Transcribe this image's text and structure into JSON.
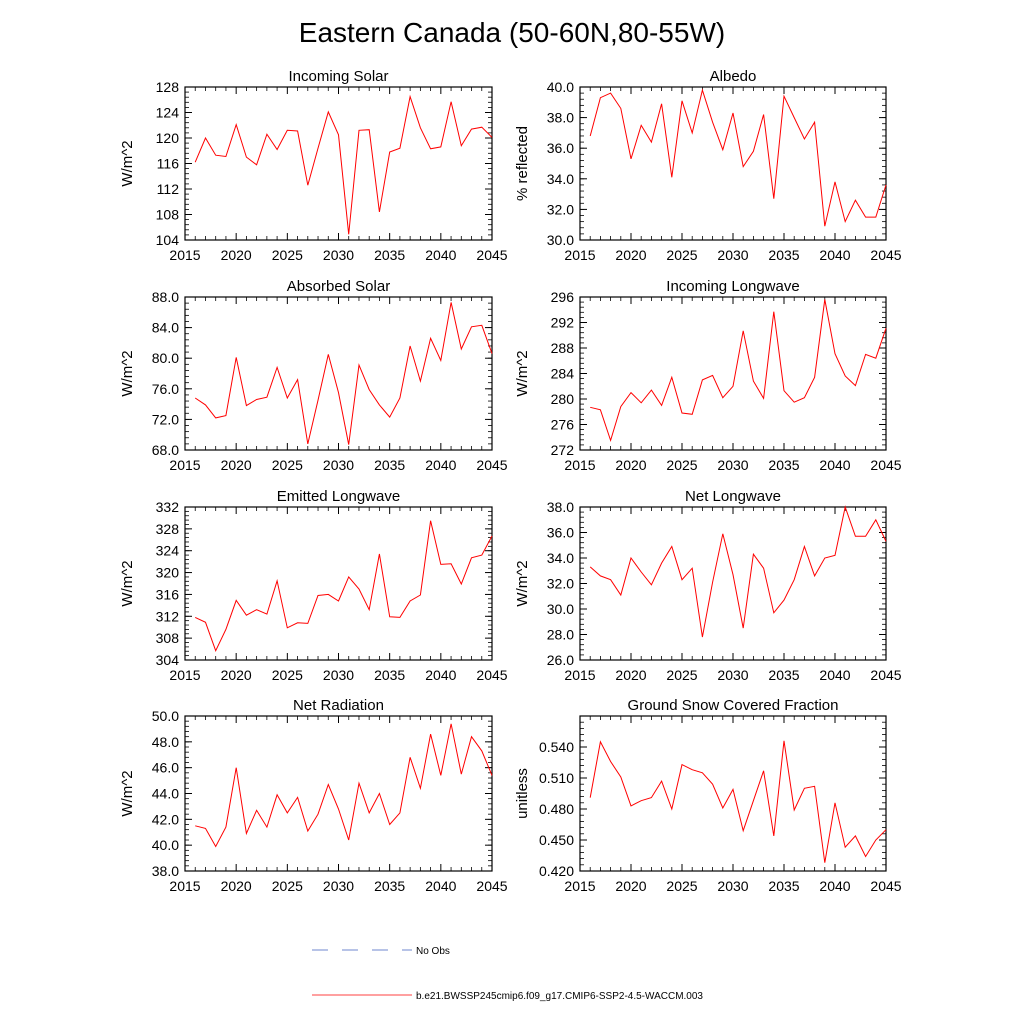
{
  "figure": {
    "title": "Eastern Canada (50-60N,80-55W)",
    "line_color": "#ff0000",
    "obs_color": "#4060c0"
  },
  "legend": {
    "items": [
      {
        "label": "No Obs",
        "style": "dashed",
        "color": "#4060c0"
      },
      {
        "label": "b.e21.BWSSP245cmip6.f09_g17.CMIP6-SSP2-4.5-WACCM.003",
        "style": "solid",
        "color": "#ff0000"
      }
    ]
  },
  "chart_data": [
    {
      "type": "line",
      "title": "Incoming Solar",
      "xlabel": "",
      "ylabel": "W/m^2",
      "xlim": [
        2015,
        2045
      ],
      "ylim": [
        104,
        128
      ],
      "yticks": [
        "104",
        "108",
        "112",
        "116",
        "120",
        "124",
        "128"
      ],
      "xticks": [
        "2015",
        "2020",
        "2025",
        "2030",
        "2035",
        "2040",
        "2045"
      ],
      "x": [
        2016,
        2017,
        2018,
        2019,
        2020,
        2021,
        2022,
        2023,
        2024,
        2025,
        2026,
        2027,
        2028,
        2029,
        2030,
        2031,
        2032,
        2033,
        2034,
        2035,
        2036,
        2037,
        2038,
        2039,
        2040,
        2041,
        2042,
        2043,
        2044,
        2045
      ],
      "series": [
        {
          "values": [
            116.2,
            120,
            117.3,
            117.1,
            122.1,
            117,
            115.8,
            120.6,
            118.2,
            121.2,
            121.1,
            112.6,
            118.4,
            124.1,
            120.5,
            104.9,
            121.2,
            121.3,
            108.4,
            117.8,
            118.4,
            126.5,
            121.6,
            118.3,
            118.6,
            125.7,
            118.8,
            121.4,
            121.7,
            120.1
          ]
        }
      ]
    },
    {
      "type": "line",
      "title": "Albedo",
      "xlabel": "",
      "ylabel": "% reflected",
      "xlim": [
        2015,
        2045
      ],
      "ylim": [
        30,
        40
      ],
      "yticks": [
        "30.0",
        "32.0",
        "34.0",
        "36.0",
        "38.0",
        "40.0"
      ],
      "xticks": [
        "2015",
        "2020",
        "2025",
        "2030",
        "2035",
        "2040",
        "2045"
      ],
      "x": [
        2016,
        2017,
        2018,
        2019,
        2020,
        2021,
        2022,
        2023,
        2024,
        2025,
        2026,
        2027,
        2028,
        2029,
        2030,
        2031,
        2032,
        2033,
        2034,
        2035,
        2036,
        2037,
        2038,
        2039,
        2040,
        2041,
        2042,
        2043,
        2044,
        2045
      ],
      "series": [
        {
          "values": [
            36.8,
            39.3,
            39.6,
            38.6,
            35.3,
            37.5,
            36.4,
            38.9,
            34.1,
            39.1,
            37,
            39.8,
            37.7,
            35.9,
            38.3,
            34.8,
            35.8,
            38.2,
            32.7,
            39.4,
            38,
            36.6,
            37.7,
            30.9,
            33.8,
            31.2,
            32.6,
            31.5,
            31.5,
            33.6
          ]
        }
      ]
    },
    {
      "type": "line",
      "title": "Absorbed Solar",
      "xlabel": "",
      "ylabel": "W/m^2",
      "xlim": [
        2015,
        2045
      ],
      "ylim": [
        68,
        88
      ],
      "yticks": [
        "68.0",
        "72.0",
        "76.0",
        "80.0",
        "84.0",
        "88.0"
      ],
      "xticks": [
        "2015",
        "2020",
        "2025",
        "2030",
        "2035",
        "2040",
        "2045"
      ],
      "x": [
        2016,
        2017,
        2018,
        2019,
        2020,
        2021,
        2022,
        2023,
        2024,
        2025,
        2026,
        2027,
        2028,
        2029,
        2030,
        2031,
        2032,
        2033,
        2034,
        2035,
        2036,
        2037,
        2038,
        2039,
        2040,
        2041,
        2042,
        2043,
        2044,
        2045
      ],
      "series": [
        {
          "values": [
            74.8,
            73.9,
            72.2,
            72.5,
            80.1,
            73.8,
            74.6,
            74.9,
            78.8,
            74.8,
            77.2,
            68.8,
            74.5,
            80.5,
            75.5,
            68.7,
            79.1,
            75.9,
            73.9,
            72.3,
            74.8,
            81.6,
            77,
            82.6,
            79.7,
            87.3,
            81.2,
            84.1,
            84.3,
            80.6
          ]
        }
      ]
    },
    {
      "type": "line",
      "title": "Incoming Longwave",
      "xlabel": "",
      "ylabel": "W/m^2",
      "xlim": [
        2015,
        2045
      ],
      "ylim": [
        272,
        296
      ],
      "yticks": [
        "272",
        "276",
        "280",
        "284",
        "288",
        "292",
        "296"
      ],
      "xticks": [
        "2015",
        "2020",
        "2025",
        "2030",
        "2035",
        "2040",
        "2045"
      ],
      "x": [
        2016,
        2017,
        2018,
        2019,
        2020,
        2021,
        2022,
        2023,
        2024,
        2025,
        2026,
        2027,
        2028,
        2029,
        2030,
        2031,
        2032,
        2033,
        2034,
        2035,
        2036,
        2037,
        2038,
        2039,
        2040,
        2041,
        2042,
        2043,
        2044,
        2045
      ],
      "series": [
        {
          "values": [
            278.7,
            278.3,
            273.5,
            278.8,
            281,
            279.4,
            281.4,
            279,
            283.4,
            277.8,
            277.6,
            283,
            283.7,
            280.2,
            282,
            290.7,
            282.8,
            280.1,
            293.7,
            281.3,
            279.5,
            280.2,
            283.4,
            295.6,
            287.1,
            283.6,
            282.1,
            287,
            286.4,
            291.1
          ]
        }
      ]
    },
    {
      "type": "line",
      "title": "Emitted Longwave",
      "xlabel": "",
      "ylabel": "W/m^2",
      "xlim": [
        2015,
        2045
      ],
      "ylim": [
        304,
        332
      ],
      "yticks": [
        "304",
        "308",
        "312",
        "316",
        "320",
        "324",
        "328",
        "332"
      ],
      "xticks": [
        "2015",
        "2020",
        "2025",
        "2030",
        "2035",
        "2040",
        "2045"
      ],
      "x": [
        2016,
        2017,
        2018,
        2019,
        2020,
        2021,
        2022,
        2023,
        2024,
        2025,
        2026,
        2027,
        2028,
        2029,
        2030,
        2031,
        2032,
        2033,
        2034,
        2035,
        2036,
        2037,
        2038,
        2039,
        2040,
        2041,
        2042,
        2043,
        2044,
        2045
      ],
      "series": [
        {
          "values": [
            311.8,
            310.9,
            305.7,
            309.6,
            314.9,
            312.2,
            313.2,
            312.4,
            318.5,
            309.9,
            310.8,
            310.7,
            315.8,
            316,
            314.8,
            319.2,
            317,
            313.2,
            323.4,
            311.9,
            311.8,
            314.8,
            315.9,
            329.5,
            321.5,
            321.6,
            317.9,
            322.7,
            323.2,
            326.7
          ]
        }
      ]
    },
    {
      "type": "line",
      "title": "Net Longwave",
      "xlabel": "",
      "ylabel": "W/m^2",
      "xlim": [
        2015,
        2045
      ],
      "ylim": [
        26,
        38
      ],
      "yticks": [
        "26.0",
        "28.0",
        "30.0",
        "32.0",
        "34.0",
        "36.0",
        "38.0"
      ],
      "xticks": [
        "2015",
        "2020",
        "2025",
        "2030",
        "2035",
        "2040",
        "2045"
      ],
      "x": [
        2016,
        2017,
        2018,
        2019,
        2020,
        2021,
        2022,
        2023,
        2024,
        2025,
        2026,
        2027,
        2028,
        2029,
        2030,
        2031,
        2032,
        2033,
        2034,
        2035,
        2036,
        2037,
        2038,
        2039,
        2040,
        2041,
        2042,
        2043,
        2044,
        2045
      ],
      "series": [
        {
          "values": [
            33.3,
            32.6,
            32.3,
            31.1,
            34,
            32.9,
            31.9,
            33.6,
            34.9,
            32.3,
            33.2,
            27.8,
            32.1,
            35.9,
            32.7,
            28.5,
            34.3,
            33.2,
            29.7,
            30.7,
            32.3,
            34.9,
            32.6,
            34,
            34.2,
            38,
            35.7,
            35.7,
            37,
            35.3
          ]
        }
      ]
    },
    {
      "type": "line",
      "title": "Net Radiation",
      "xlabel": "",
      "ylabel": "W/m^2",
      "xlim": [
        2015,
        2045
      ],
      "ylim": [
        38,
        50
      ],
      "yticks": [
        "38.0",
        "40.0",
        "42.0",
        "44.0",
        "46.0",
        "48.0",
        "50.0"
      ],
      "xticks": [
        "2015",
        "2020",
        "2025",
        "2030",
        "2035",
        "2040",
        "2045"
      ],
      "x": [
        2016,
        2017,
        2018,
        2019,
        2020,
        2021,
        2022,
        2023,
        2024,
        2025,
        2026,
        2027,
        2028,
        2029,
        2030,
        2031,
        2032,
        2033,
        2034,
        2035,
        2036,
        2037,
        2038,
        2039,
        2040,
        2041,
        2042,
        2043,
        2044,
        2045
      ],
      "series": [
        {
          "values": [
            41.5,
            41.3,
            39.9,
            41.4,
            46,
            40.9,
            42.7,
            41.4,
            43.9,
            42.5,
            43.7,
            41.1,
            42.4,
            44.7,
            42.8,
            40.4,
            44.8,
            42.5,
            44,
            41.6,
            42.5,
            46.8,
            44.4,
            48.6,
            45.4,
            49.4,
            45.5,
            48.4,
            47.3,
            45.4
          ]
        }
      ]
    },
    {
      "type": "line",
      "title": "Ground Snow Covered Fraction",
      "xlabel": "",
      "ylabel": "unitless",
      "xlim": [
        2015,
        2045
      ],
      "ylim": [
        0.42,
        0.57
      ],
      "yticks": [
        "0.420",
        "0.450",
        "0.480",
        "0.510",
        "0.540"
      ],
      "xticks": [
        "2015",
        "2020",
        "2025",
        "2030",
        "2035",
        "2040",
        "2045"
      ],
      "x": [
        2016,
        2017,
        2018,
        2019,
        2020,
        2021,
        2022,
        2023,
        2024,
        2025,
        2026,
        2027,
        2028,
        2029,
        2030,
        2031,
        2032,
        2033,
        2034,
        2035,
        2036,
        2037,
        2038,
        2039,
        2040,
        2041,
        2042,
        2043,
        2044,
        2045
      ],
      "series": [
        {
          "values": [
            0.491,
            0.545,
            0.526,
            0.511,
            0.483,
            0.488,
            0.491,
            0.507,
            0.48,
            0.523,
            0.518,
            0.515,
            0.504,
            0.481,
            0.499,
            0.459,
            0.488,
            0.517,
            0.454,
            0.546,
            0.479,
            0.5,
            0.502,
            0.428,
            0.486,
            0.443,
            0.454,
            0.434,
            0.45,
            0.46
          ]
        }
      ]
    }
  ]
}
